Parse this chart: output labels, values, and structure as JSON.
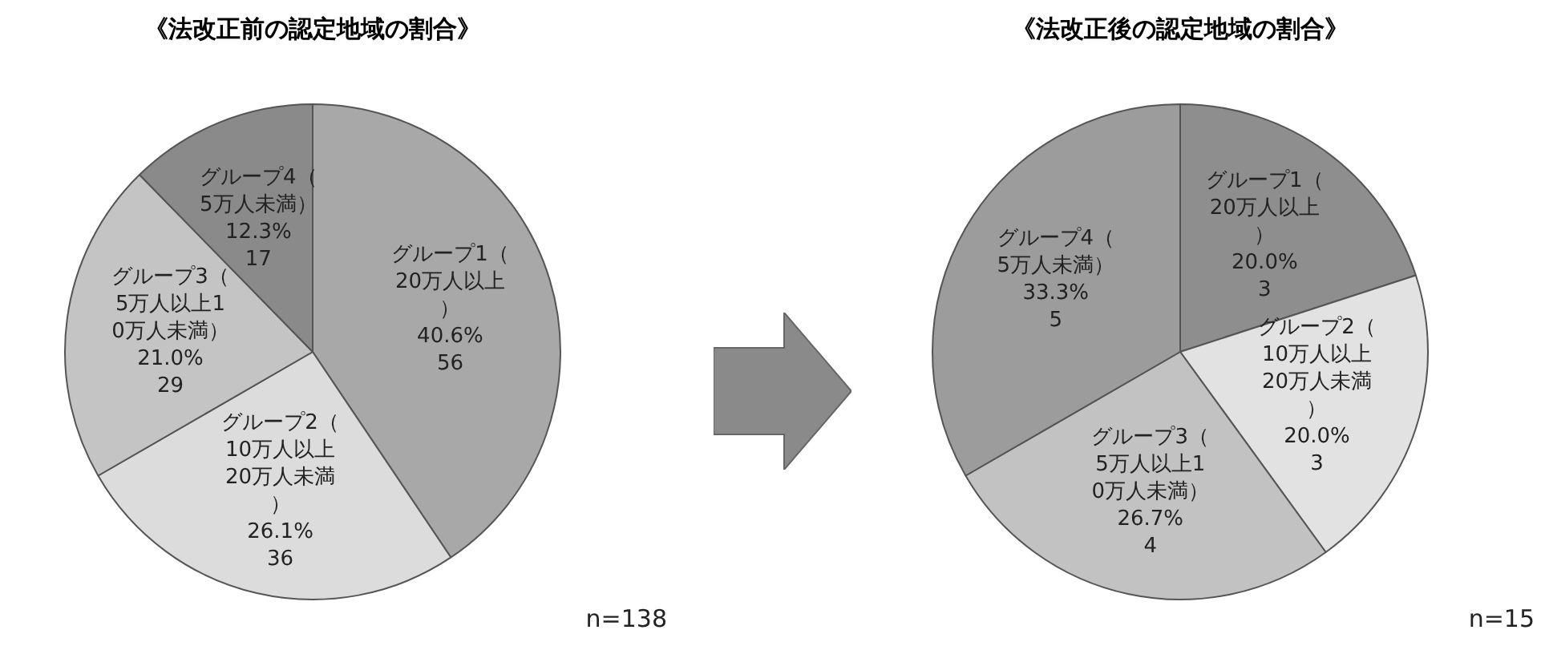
{
  "chart_data": [
    {
      "type": "pie",
      "title": "《法改正前の認定地域の割合》",
      "categories": [
        "グループ1（20万人以上）",
        "グループ2（10万人以上20万人未満）",
        "グループ3（5万人以上10万人未満）",
        "グループ4（5万人未満）"
      ],
      "values": [
        56,
        36,
        29,
        17
      ],
      "value_labels": [
        "40.6%\n56",
        "26.1%\n36",
        "21.0%\n29",
        "12.3%\n17"
      ],
      "colors": [
        "#a8a8a8",
        "#dcdcdc",
        "#c4c4c4",
        "#8a8a8a"
      ],
      "legend": false,
      "annotations": [
        "n=138"
      ]
    },
    {
      "type": "pie",
      "title": "《法改正後の認定地域の割合》",
      "categories": [
        "グループ1（20万人以上）",
        "グループ2（10万人以上20万人未満）",
        "グループ3（5万人以上10万人未満）",
        "グループ4（5万人未満）"
      ],
      "values": [
        3,
        3,
        4,
        5
      ],
      "value_labels": [
        "20.0%\n3",
        "20.0%\n3",
        "26.7%\n4",
        "33.3%\n5"
      ],
      "colors": [
        "#8e8e8e",
        "#e2e2e2",
        "#c2c2c2",
        "#9c9c9c"
      ],
      "legend": false,
      "annotations": [
        "n=15"
      ]
    }
  ]
}
